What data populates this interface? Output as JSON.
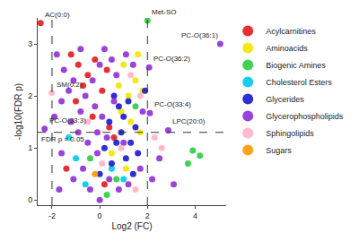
{
  "chart_data": {
    "type": "scatter",
    "x_label": "Log2 (FC)",
    "y_label": "-log10(FDR p)",
    "xlim": [
      -2.6,
      5.3
    ],
    "ylim": [
      -0.1,
      3.5
    ],
    "xticks": [
      -2,
      0,
      2,
      4
    ],
    "yticks": [
      0,
      1,
      2,
      3
    ],
    "grid": false,
    "legend": "right",
    "marker": "circle",
    "reference_lines": {
      "x": [
        -2,
        2
      ],
      "y": 1.3,
      "label": "FDR p = 0.05",
      "line_style": "dash"
    },
    "series": [
      {
        "name": "Acylcarnitines",
        "color": "#e41a1c",
        "x": [
          -2.48,
          -1.2,
          -0.9,
          -0.5,
          -0.2,
          0.1,
          -0.3,
          0.4,
          -1.4,
          0.2,
          0.6,
          -0.7,
          0.3,
          -1.0
        ],
        "y": [
          3.4,
          2.8,
          2.6,
          2.4,
          2.7,
          2.1,
          1.6,
          1.4,
          0.6,
          0.3,
          1.2,
          2.2,
          2.5,
          1.9
        ]
      },
      {
        "name": "Aminoacids",
        "color": "#f2e600",
        "x": [
          1.5,
          1.2,
          1.8,
          1.0,
          1.6,
          0.9,
          1.3,
          0.8,
          1.7,
          0.5,
          1.1
        ],
        "y": [
          2.3,
          2.0,
          2.1,
          2.6,
          2.8,
          1.7,
          1.5,
          2.2,
          1.3,
          0.9,
          0.6
        ]
      },
      {
        "name": "Biogenic Amines",
        "color": "#2ecc40",
        "x": [
          2.0,
          1.5,
          3.9,
          4.2,
          3.7,
          0.7,
          -0.4,
          0.3
        ],
        "y": [
          3.45,
          1.8,
          0.95,
          0.85,
          0.7,
          0.4,
          0.8,
          0.1
        ]
      },
      {
        "name": "Cholesterol Esters",
        "color": "#00c8f0",
        "x": [
          -1.3,
          -1.0,
          0.5,
          -0.6,
          1.0
        ],
        "y": [
          1.2,
          0.8,
          0.6,
          0.3,
          0.4
        ]
      },
      {
        "name": "Glycerides",
        "color": "#1a1acc",
        "x": [
          0.6,
          0.8,
          1.0,
          1.2,
          0.4,
          1.5,
          0.9,
          0.7,
          1.3,
          1.9,
          1.6,
          0.2,
          1.1,
          0.5,
          1.4,
          0.0
        ],
        "y": [
          2.0,
          1.8,
          1.6,
          1.9,
          1.5,
          1.4,
          1.3,
          1.1,
          1.1,
          2.1,
          0.9,
          1.0,
          0.8,
          0.7,
          0.5,
          0.5
        ]
      },
      {
        "name": "Glycerophospholipids",
        "color": "#8e2fd6",
        "x": [
          5.05,
          2.07,
          2.1,
          2.87,
          -2.31,
          -1.8,
          -1.5,
          -1.6,
          -1.9,
          -1.1,
          -0.8,
          -0.6,
          -0.3,
          0.0,
          0.2,
          0.5,
          0.7,
          1.1,
          1.4,
          -1.2,
          -0.9,
          -0.5,
          -0.2,
          0.1,
          0.3,
          -0.1,
          -0.7,
          -1.1,
          -1.6,
          -0.4,
          0.0,
          0.4,
          0.8,
          1.2,
          1.7,
          2.2,
          2.5,
          3.1,
          -1.7,
          -0.8,
          0.6,
          1.0,
          1.8,
          -1.3,
          -0.1
        ],
        "y": [
          3.0,
          2.55,
          1.67,
          1.34,
          1.37,
          2.8,
          2.5,
          1.9,
          1.6,
          2.3,
          2.9,
          2.0,
          2.3,
          2.6,
          2.9,
          2.7,
          2.4,
          2.8,
          2.6,
          1.5,
          1.3,
          1.1,
          1.8,
          1.6,
          1.2,
          0.9,
          0.6,
          0.4,
          0.9,
          0.2,
          0.0,
          0.4,
          0.2,
          0.3,
          0.6,
          0.4,
          0.8,
          0.3,
          0.2,
          1.7,
          1.9,
          1.1,
          1.7,
          2.1,
          1.3
        ]
      },
      {
        "name": "Sphingolipids",
        "color": "#ffb3c6",
        "x": [
          -2.01,
          1.3,
          1.7,
          0.9,
          2.3,
          2.6,
          -0.5,
          0.1,
          1.5
        ],
        "y": [
          2.06,
          2.4,
          2.0,
          1.0,
          1.2,
          1.0,
          1.5,
          0.7,
          0.2
        ]
      },
      {
        "name": "Sugars",
        "color": "#ff9900",
        "x": [
          -0.2
        ],
        "y": [
          0.5
        ]
      }
    ],
    "annotations": [
      {
        "text": "AC(0:0)",
        "x": -2.48,
        "y": 3.4
      },
      {
        "text": "Met-SO",
        "x": 2.0,
        "y": 3.45
      },
      {
        "text": "PC-O(36:1)",
        "x": 5.05,
        "y": 3.0
      },
      {
        "text": "PC-O(36:2)",
        "x": 2.07,
        "y": 2.55
      },
      {
        "text": "SM(0:2)",
        "x": -2.01,
        "y": 2.06
      },
      {
        "text": "PC-O(33:4)",
        "x": 2.1,
        "y": 1.67
      },
      {
        "text": "LPC(20:0)",
        "x": 2.87,
        "y": 1.34
      },
      {
        "text": "PC-O(33:3)",
        "x": -2.31,
        "y": 1.37
      }
    ]
  }
}
